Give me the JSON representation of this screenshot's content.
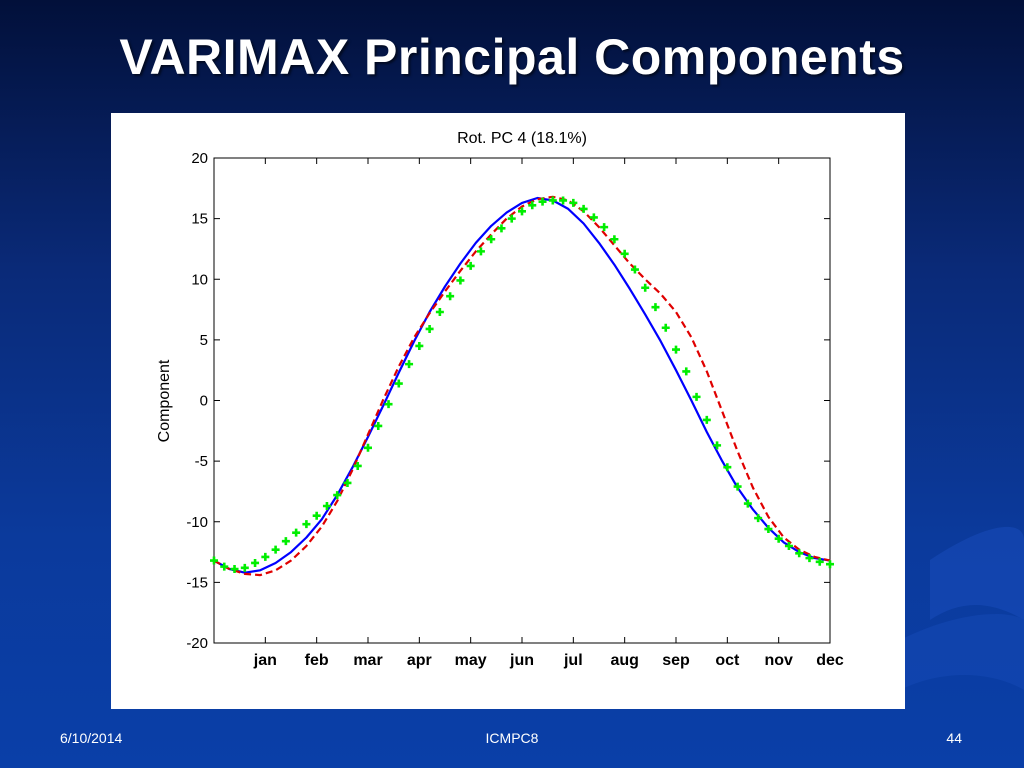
{
  "slide": {
    "title": "VARIMAX Principal Components",
    "footer_date": "6/10/2014",
    "footer_center": "ICMPC8",
    "footer_page": "44"
  },
  "colors": {
    "background_top": "#02103a",
    "background_bottom": "#0a3fa8",
    "solid_series": "#0000ff",
    "dashed_series": "#e00000",
    "marker_series": "#00ee00"
  },
  "chart_data": {
    "type": "line",
    "title": "Rot. PC 4 (18.1%)",
    "xlabel": "",
    "ylabel": "Component",
    "xlim": [
      0,
      12
    ],
    "ylim": [
      -20,
      20
    ],
    "yticks": [
      -20,
      -15,
      -10,
      -5,
      0,
      5,
      10,
      15,
      20
    ],
    "xticks": [
      1,
      2,
      3,
      4,
      5,
      6,
      7,
      8,
      9,
      10,
      11,
      12
    ],
    "xtick_labels": [
      "jan",
      "feb",
      "mar",
      "apr",
      "may",
      "jun",
      "jul",
      "aug",
      "sep",
      "oct",
      "nov",
      "dec"
    ],
    "grid": false,
    "series": [
      {
        "style": "solid",
        "color": "#0000ff",
        "x": [
          0,
          0.3,
          0.6,
          0.9,
          1.2,
          1.5,
          1.8,
          2.1,
          2.4,
          2.7,
          3.0,
          3.3,
          3.6,
          3.9,
          4.2,
          4.5,
          4.8,
          5.1,
          5.4,
          5.7,
          6.0,
          6.3,
          6.6,
          6.9,
          7.2,
          7.5,
          7.8,
          8.1,
          8.4,
          8.7,
          9.0,
          9.3,
          9.6,
          9.9,
          10.2,
          10.5,
          10.8,
          11.1,
          11.4,
          11.7,
          12.0
        ],
        "y": [
          -13.2,
          -13.9,
          -14.2,
          -14.0,
          -13.4,
          -12.5,
          -11.3,
          -9.8,
          -7.8,
          -5.5,
          -3.0,
          -0.4,
          2.3,
          4.9,
          7.3,
          9.4,
          11.3,
          13.0,
          14.4,
          15.5,
          16.3,
          16.7,
          16.5,
          15.8,
          14.6,
          13.0,
          11.2,
          9.2,
          7.1,
          4.9,
          2.5,
          0.0,
          -2.6,
          -5.0,
          -7.2,
          -9.0,
          -10.5,
          -11.7,
          -12.5,
          -13.0,
          -13.2
        ]
      },
      {
        "style": "dashed",
        "color": "#e00000",
        "x": [
          0,
          0.3,
          0.6,
          0.9,
          1.2,
          1.5,
          1.8,
          2.1,
          2.4,
          2.7,
          3.0,
          3.3,
          3.6,
          3.9,
          4.2,
          4.5,
          4.8,
          5.1,
          5.4,
          5.7,
          6.0,
          6.3,
          6.6,
          6.9,
          7.2,
          7.5,
          7.8,
          8.1,
          8.4,
          8.7,
          9.0,
          9.3,
          9.6,
          9.9,
          10.2,
          10.5,
          10.8,
          11.1,
          11.4,
          11.7,
          12.0
        ],
        "y": [
          -13.2,
          -13.9,
          -14.3,
          -14.4,
          -14.0,
          -13.2,
          -12.0,
          -10.4,
          -8.3,
          -5.7,
          -2.8,
          0.1,
          2.8,
          5.2,
          7.2,
          9.0,
          10.7,
          12.3,
          13.7,
          15.0,
          16.0,
          16.6,
          16.8,
          16.5,
          15.6,
          14.3,
          12.8,
          11.3,
          10.0,
          8.8,
          7.3,
          5.2,
          2.4,
          -0.9,
          -4.2,
          -7.2,
          -9.6,
          -11.3,
          -12.3,
          -12.9,
          -13.2
        ]
      },
      {
        "style": "markers",
        "marker": "+",
        "color": "#00ee00",
        "x": [
          0,
          0.2,
          0.4,
          0.6,
          0.8,
          1.0,
          1.2,
          1.4,
          1.6,
          1.8,
          2.0,
          2.2,
          2.4,
          2.6,
          2.8,
          3.0,
          3.2,
          3.4,
          3.6,
          3.8,
          4.0,
          4.2,
          4.4,
          4.6,
          4.8,
          5.0,
          5.2,
          5.4,
          5.6,
          5.8,
          6.0,
          6.2,
          6.4,
          6.6,
          6.8,
          7.0,
          7.2,
          7.4,
          7.6,
          7.8,
          8.0,
          8.2,
          8.4,
          8.6,
          8.8,
          9.0,
          9.2,
          9.4,
          9.6,
          9.8,
          10.0,
          10.2,
          10.4,
          10.6,
          10.8,
          11.0,
          11.2,
          11.4,
          11.6,
          11.8,
          12.0
        ],
        "y": [
          -13.2,
          -13.7,
          -13.9,
          -13.8,
          -13.4,
          -12.9,
          -12.3,
          -11.6,
          -10.9,
          -10.2,
          -9.5,
          -8.7,
          -7.8,
          -6.8,
          -5.4,
          -3.9,
          -2.1,
          -0.3,
          1.4,
          3.0,
          4.5,
          5.9,
          7.3,
          8.6,
          9.9,
          11.1,
          12.3,
          13.3,
          14.2,
          15.0,
          15.6,
          16.1,
          16.4,
          16.5,
          16.5,
          16.3,
          15.8,
          15.1,
          14.3,
          13.3,
          12.1,
          10.8,
          9.3,
          7.7,
          6.0,
          4.2,
          2.4,
          0.3,
          -1.6,
          -3.7,
          -5.5,
          -7.1,
          -8.5,
          -9.7,
          -10.6,
          -11.4,
          -12.0,
          -12.6,
          -13.0,
          -13.3,
          -13.5
        ]
      }
    ]
  }
}
